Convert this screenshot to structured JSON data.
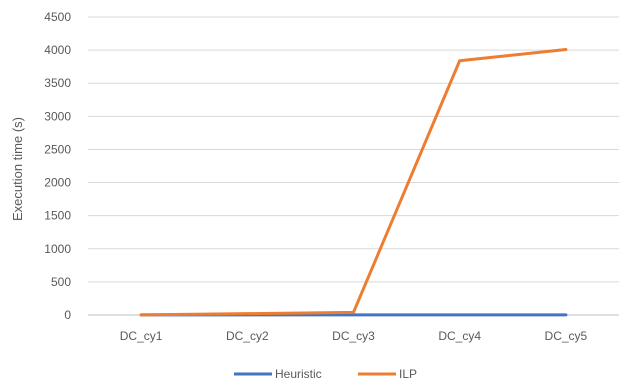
{
  "chart_data": {
    "type": "line",
    "title": "",
    "xlabel": "",
    "ylabel": "Execution time (s)",
    "categories": [
      "DC_cy1",
      "DC_cy2",
      "DC_cy3",
      "DC_cy4",
      "DC_cy5"
    ],
    "ylim": [
      0,
      4500
    ],
    "yticks": [
      "0",
      "500",
      "1000",
      "1500",
      "2000",
      "2500",
      "3000",
      "3500",
      "4000",
      "4500"
    ],
    "grid": true,
    "legend_position": "bottom",
    "series": [
      {
        "name": "Heuristic",
        "color": "#4472C4",
        "values": [
          1,
          1,
          1,
          1,
          1
        ]
      },
      {
        "name": "ILP",
        "color": "#ED7D31",
        "values": [
          2,
          20,
          40,
          3840,
          4010
        ]
      }
    ]
  }
}
